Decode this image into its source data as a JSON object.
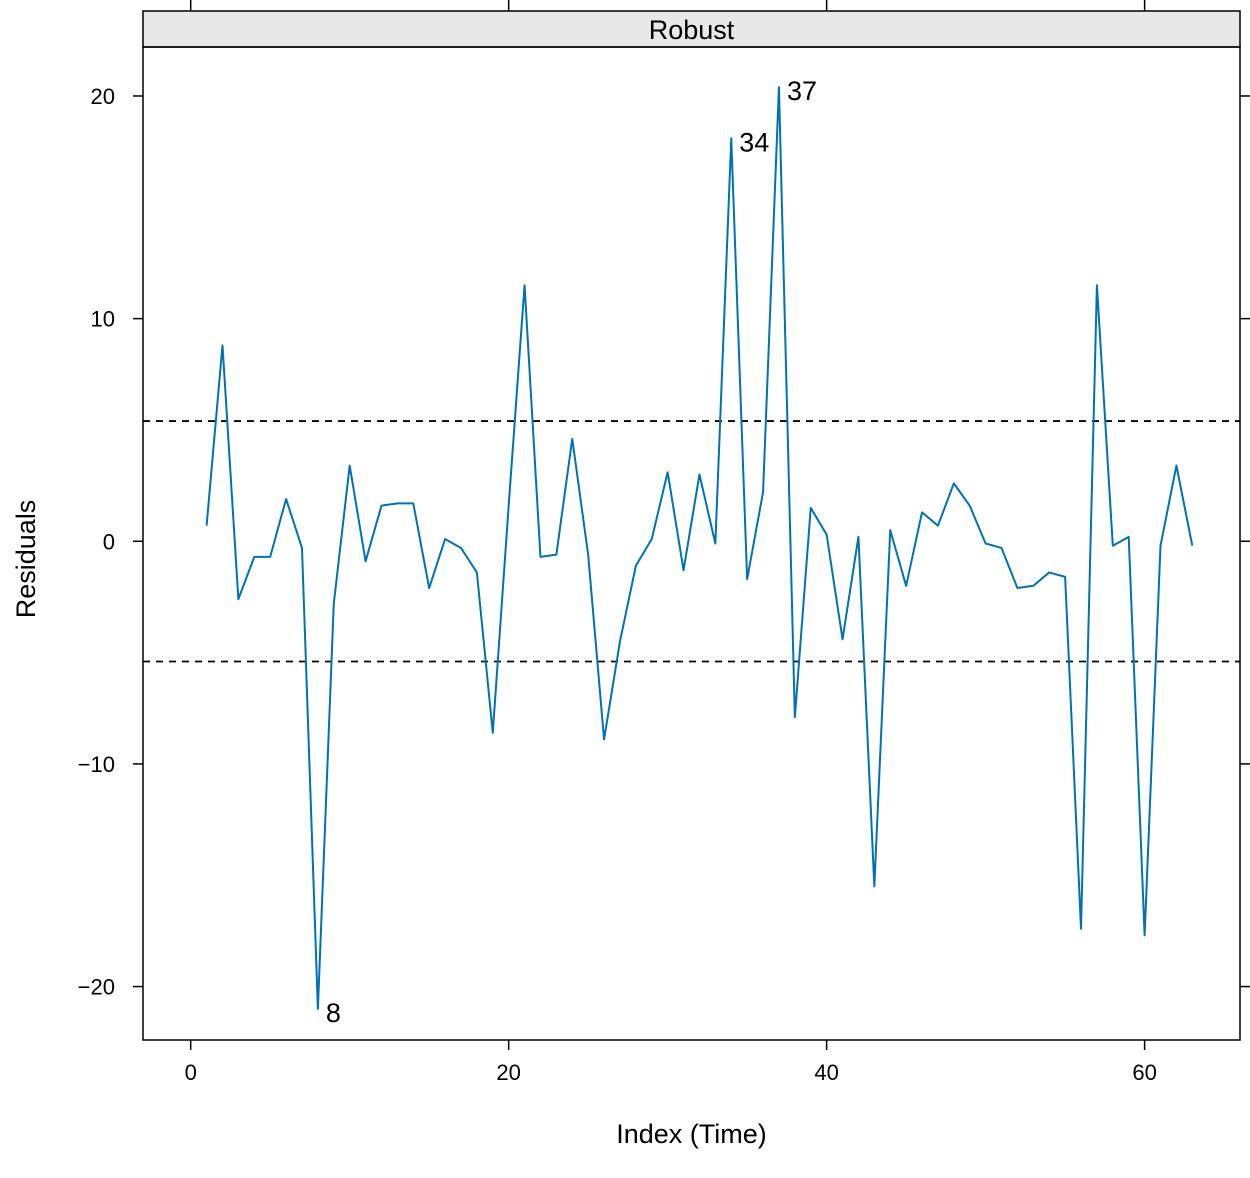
{
  "chart_data": {
    "type": "line",
    "panel_title": "Robust",
    "xlabel": "Index (Time)",
    "ylabel": "Residuals",
    "xlim": [
      -3,
      66
    ],
    "ylim": [
      -22.4,
      22.2
    ],
    "x_ticks": [
      0,
      20,
      40,
      60
    ],
    "y_ticks": [
      -20,
      -10,
      0,
      10,
      20
    ],
    "x_tick_labels": [
      "0",
      "20",
      "40",
      "60"
    ],
    "y_tick_labels": [
      "−20",
      "−10",
      "0",
      "10",
      "20"
    ],
    "grid": false,
    "legend": "none",
    "reference_lines": [
      5.4,
      -5.4
    ],
    "series": [
      {
        "color": "#0072B2",
        "x": [
          1,
          2,
          3,
          4,
          5,
          6,
          7,
          8,
          9,
          10,
          11,
          12,
          13,
          14,
          15,
          16,
          17,
          18,
          19,
          20,
          21,
          22,
          23,
          24,
          25,
          26,
          27,
          28,
          29,
          30,
          31,
          32,
          33,
          34,
          35,
          36,
          37,
          38,
          39,
          40,
          41,
          42,
          43,
          44,
          45,
          46,
          47,
          48,
          49,
          50,
          51,
          52,
          53,
          54,
          55,
          56,
          57,
          58,
          59,
          60,
          61,
          62,
          63
        ],
        "y": [
          0.7,
          8.8,
          -2.6,
          -0.7,
          -0.7,
          1.9,
          -0.3,
          -21.0,
          -2.8,
          3.4,
          -0.9,
          1.6,
          1.7,
          1.7,
          -2.1,
          0.1,
          -0.3,
          -1.4,
          -8.6,
          1.6,
          11.5,
          -0.7,
          -0.6,
          4.6,
          -0.6,
          -8.9,
          -4.5,
          -1.1,
          0.1,
          3.1,
          -1.3,
          3.0,
          -0.1,
          18.1,
          -1.7,
          2.2,
          20.4,
          -7.9,
          1.5,
          0.3,
          -4.4,
          0.2,
          -15.5,
          0.5,
          -2.0,
          1.3,
          0.7,
          2.6,
          1.6,
          -0.1,
          -0.3,
          -2.1,
          -2.0,
          -1.4,
          -1.6,
          -17.4,
          11.5,
          -0.2,
          0.2,
          -17.7,
          -0.2,
          3.4,
          -0.2
        ]
      }
    ],
    "annotations": [
      {
        "label": "8",
        "x": 8,
        "y": -21.0
      },
      {
        "label": "34",
        "x": 34,
        "y": 18.1
      },
      {
        "label": "37",
        "x": 37,
        "y": 20.4
      }
    ]
  }
}
